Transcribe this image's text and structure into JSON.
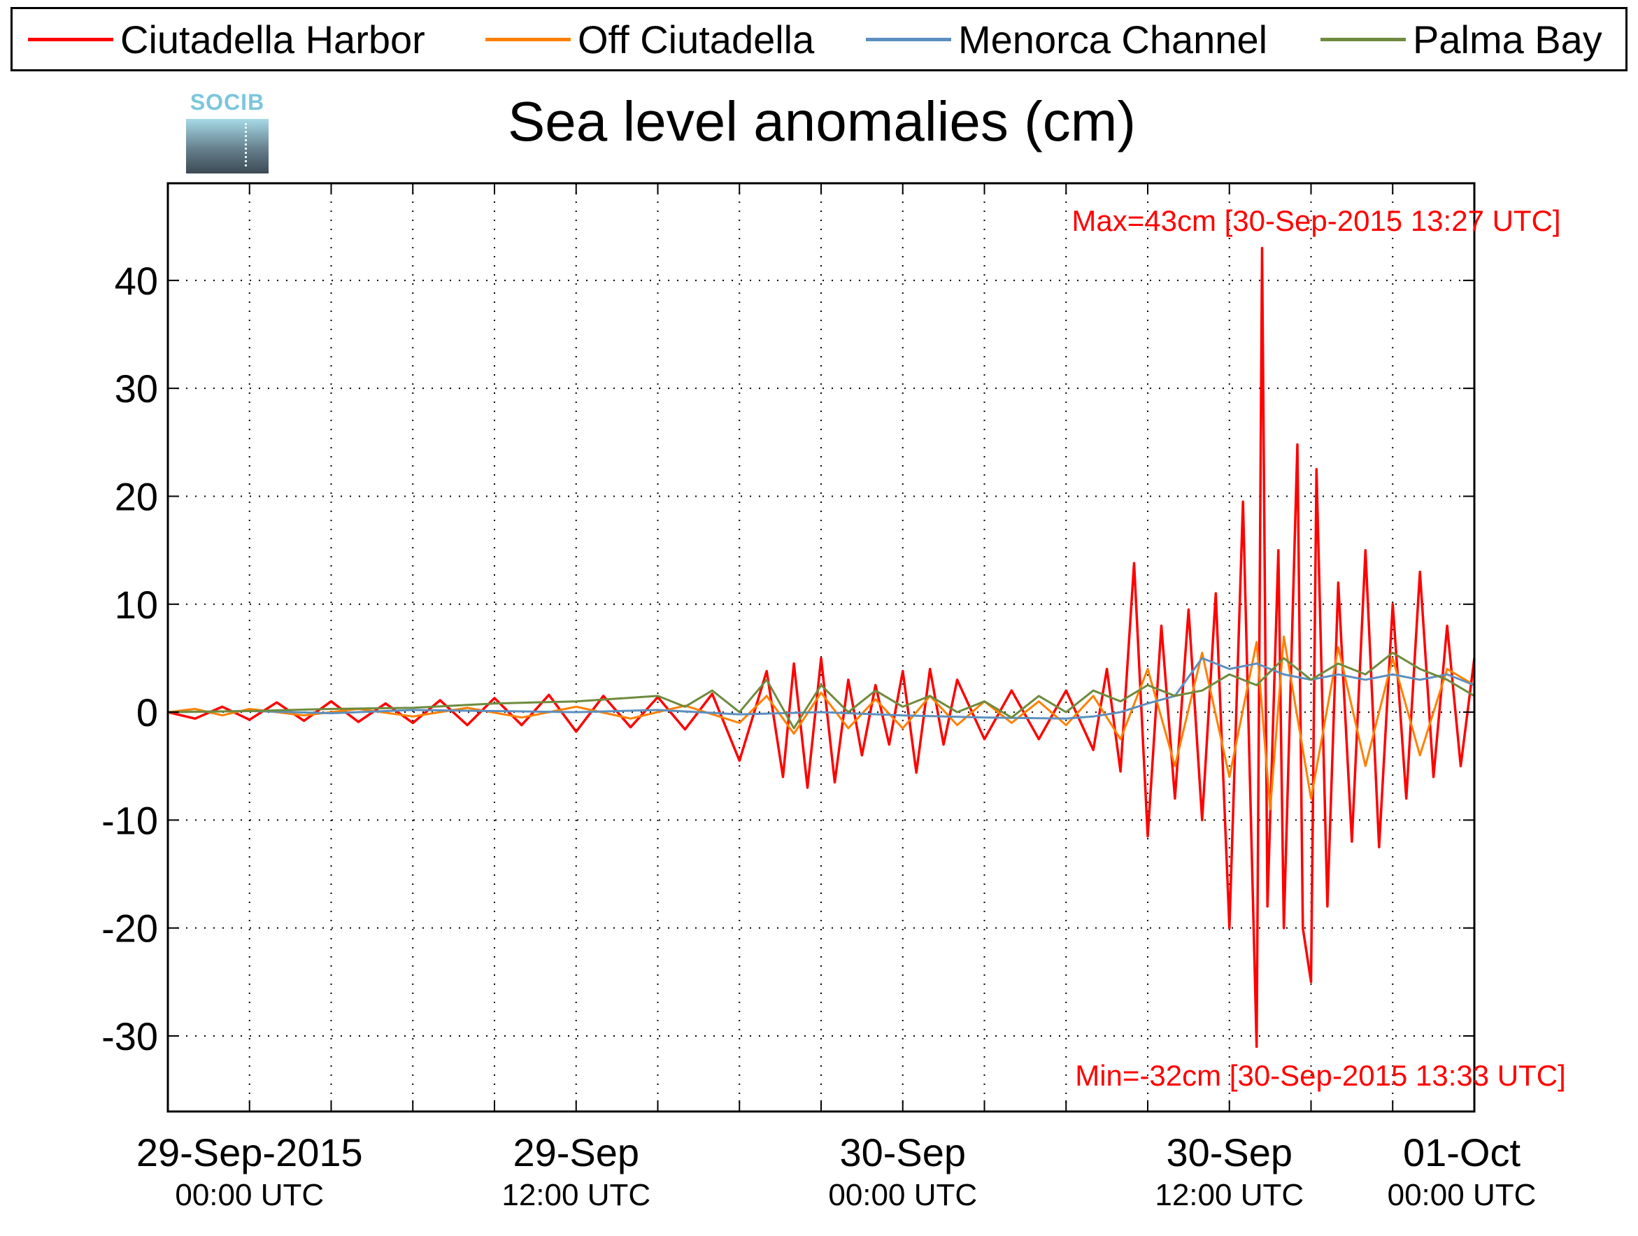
{
  "legend": {
    "items": [
      {
        "label": "Ciutadella Harbor",
        "color": "#ff0000"
      },
      {
        "label": "Off Ciutadella",
        "color": "#ff8000"
      },
      {
        "label": "Menorca Channel",
        "color": "#5b8fbf"
      },
      {
        "label": "Palma Bay",
        "color": "#6e8b3d"
      }
    ]
  },
  "logo": {
    "text": "SOCIB"
  },
  "chart_data": {
    "type": "line",
    "title": "Sea level anomalies (cm)",
    "xlabel": "",
    "ylabel": "",
    "xlim_hours": [
      -3,
      45
    ],
    "ylim": [
      -37,
      49
    ],
    "grid": true,
    "legend_position": "top",
    "y_ticks": [
      40,
      30,
      20,
      10,
      0,
      -10,
      -20,
      -30
    ],
    "x_ticks": [
      {
        "hour": 0,
        "label1": "29-Sep-2015",
        "label2": "00:00 UTC"
      },
      {
        "hour": 12,
        "label1": "29-Sep",
        "label2": "12:00 UTC"
      },
      {
        "hour": 24,
        "label1": "30-Sep",
        "label2": "00:00 UTC"
      },
      {
        "hour": 36,
        "label1": "30-Sep",
        "label2": "12:00 UTC"
      },
      {
        "hour": 48,
        "label1": "01-Oct",
        "label2": "00:00 UTC"
      }
    ],
    "annotations": {
      "max": "Max=43cm [30-Sep-2015 13:27 UTC]",
      "min": "Min=-32cm [30-Sep-2015 13:33 UTC]"
    },
    "series": [
      {
        "name": "Ciutadella Harbor",
        "color": "#ff0000",
        "points": [
          [
            -3,
            0
          ],
          [
            -2,
            -0.6
          ],
          [
            -1,
            0.5
          ],
          [
            0,
            -0.7
          ],
          [
            1,
            0.9
          ],
          [
            2,
            -0.8
          ],
          [
            3,
            1.0
          ],
          [
            4,
            -0.9
          ],
          [
            5,
            0.8
          ],
          [
            6,
            -1.0
          ],
          [
            7,
            1.1
          ],
          [
            8,
            -1.2
          ],
          [
            9,
            1.3
          ],
          [
            10,
            -1.2
          ],
          [
            11,
            1.6
          ],
          [
            12,
            -1.8
          ],
          [
            13,
            1.5
          ],
          [
            14,
            -1.4
          ],
          [
            15,
            1.4
          ],
          [
            16,
            -1.6
          ],
          [
            17,
            1.7
          ],
          [
            18,
            -4.5
          ],
          [
            19,
            3.8
          ],
          [
            19.6,
            -6.0
          ],
          [
            20,
            4.5
          ],
          [
            20.5,
            -7.0
          ],
          [
            21,
            5.0
          ],
          [
            21.5,
            -6.5
          ],
          [
            22,
            3.0
          ],
          [
            22.5,
            -4.0
          ],
          [
            23,
            2.5
          ],
          [
            23.5,
            -3.0
          ],
          [
            24,
            3.8
          ],
          [
            24.5,
            -5.6
          ],
          [
            25,
            4.0
          ],
          [
            25.5,
            -3.0
          ],
          [
            26,
            3.0
          ],
          [
            27,
            -2.5
          ],
          [
            28,
            2.0
          ],
          [
            29,
            -2.5
          ],
          [
            30,
            2.0
          ],
          [
            31,
            -3.5
          ],
          [
            31.5,
            4.0
          ],
          [
            32,
            -5.5
          ],
          [
            32.5,
            13.8
          ],
          [
            33,
            -11.5
          ],
          [
            33.5,
            8.0
          ],
          [
            34,
            -8.0
          ],
          [
            34.5,
            9.5
          ],
          [
            35,
            -10.0
          ],
          [
            35.5,
            11.0
          ],
          [
            36,
            -20.0
          ],
          [
            36.5,
            19.5
          ],
          [
            37,
            -31.0
          ],
          [
            37.2,
            43.0
          ],
          [
            37.4,
            -18.0
          ],
          [
            37.8,
            15.0
          ],
          [
            38,
            -20.0
          ],
          [
            38.5,
            24.8
          ],
          [
            38.7,
            -20.0
          ],
          [
            39,
            -25.0
          ],
          [
            39.2,
            22.5
          ],
          [
            39.6,
            -18.0
          ],
          [
            40,
            12.0
          ],
          [
            40.5,
            -12.0
          ],
          [
            41,
            15.0
          ],
          [
            41.5,
            -12.5
          ],
          [
            42,
            10.0
          ],
          [
            42.5,
            -8.0
          ],
          [
            43,
            13.0
          ],
          [
            43.5,
            -6.0
          ],
          [
            44,
            8.0
          ],
          [
            44.5,
            -5.0
          ],
          [
            45,
            5.0
          ]
        ]
      },
      {
        "name": "Off Ciutadella",
        "color": "#ff8000",
        "points": [
          [
            -3,
            0
          ],
          [
            -2,
            0.3
          ],
          [
            -1,
            -0.3
          ],
          [
            0,
            0.3
          ],
          [
            2,
            -0.3
          ],
          [
            4,
            0.3
          ],
          [
            6,
            -0.4
          ],
          [
            8,
            0.4
          ],
          [
            10,
            -0.5
          ],
          [
            12,
            0.5
          ],
          [
            14,
            -0.6
          ],
          [
            16,
            0.6
          ],
          [
            18,
            -1.0
          ],
          [
            19,
            1.5
          ],
          [
            20,
            -2.0
          ],
          [
            21,
            1.8
          ],
          [
            22,
            -1.5
          ],
          [
            23,
            1.2
          ],
          [
            24,
            -1.5
          ],
          [
            25,
            1.5
          ],
          [
            26,
            -1.2
          ],
          [
            27,
            1.0
          ],
          [
            28,
            -1.0
          ],
          [
            29,
            1.0
          ],
          [
            30,
            -1.2
          ],
          [
            31,
            1.5
          ],
          [
            32,
            -2.5
          ],
          [
            33,
            4.0
          ],
          [
            34,
            -5.0
          ],
          [
            35,
            5.5
          ],
          [
            36,
            -6.0
          ],
          [
            37,
            6.5
          ],
          [
            37.5,
            -9.0
          ],
          [
            38,
            7.0
          ],
          [
            39,
            -8.0
          ],
          [
            40,
            6.0
          ],
          [
            41,
            -5.0
          ],
          [
            42,
            5.0
          ],
          [
            43,
            -4.0
          ],
          [
            44,
            4.0
          ],
          [
            45,
            2.5
          ]
        ]
      },
      {
        "name": "Menorca Channel",
        "color": "#5b8fbf",
        "points": [
          [
            -3,
            0
          ],
          [
            0,
            0.1
          ],
          [
            3,
            -0.1
          ],
          [
            6,
            0.2
          ],
          [
            9,
            0.1
          ],
          [
            12,
            0
          ],
          [
            15,
            0.2
          ],
          [
            18,
            -0.2
          ],
          [
            21,
            0
          ],
          [
            24,
            -0.3
          ],
          [
            27,
            -0.5
          ],
          [
            30,
            -0.6
          ],
          [
            31,
            -0.4
          ],
          [
            32,
            0
          ],
          [
            33,
            0.8
          ],
          [
            34,
            1.5
          ],
          [
            35,
            5.0
          ],
          [
            36,
            4.0
          ],
          [
            37,
            4.5
          ],
          [
            38,
            3.5
          ],
          [
            39,
            3.0
          ],
          [
            40,
            3.5
          ],
          [
            41,
            3.0
          ],
          [
            42,
            3.5
          ],
          [
            43,
            3.0
          ],
          [
            44,
            3.5
          ],
          [
            45,
            2.5
          ]
        ]
      },
      {
        "name": "Palma Bay",
        "color": "#6e8b3d",
        "points": [
          [
            -3,
            0
          ],
          [
            0,
            0.1
          ],
          [
            3,
            0.3
          ],
          [
            6,
            0.4
          ],
          [
            9,
            0.8
          ],
          [
            12,
            1.0
          ],
          [
            15,
            1.5
          ],
          [
            16,
            0.5
          ],
          [
            17,
            2.0
          ],
          [
            18,
            0
          ],
          [
            19,
            3.0
          ],
          [
            20,
            -1.5
          ],
          [
            21,
            2.5
          ],
          [
            22,
            0
          ],
          [
            23,
            2.0
          ],
          [
            24,
            0.5
          ],
          [
            25,
            1.5
          ],
          [
            26,
            0
          ],
          [
            27,
            1.0
          ],
          [
            28,
            -0.5
          ],
          [
            29,
            1.5
          ],
          [
            30,
            0
          ],
          [
            31,
            2.0
          ],
          [
            32,
            1.0
          ],
          [
            33,
            2.5
          ],
          [
            34,
            1.5
          ],
          [
            35,
            2.0
          ],
          [
            36,
            3.5
          ],
          [
            37,
            2.5
          ],
          [
            38,
            5.0
          ],
          [
            39,
            3.0
          ],
          [
            40,
            4.5
          ],
          [
            41,
            3.5
          ],
          [
            42,
            5.5
          ],
          [
            43,
            4.0
          ],
          [
            44,
            3.0
          ],
          [
            45,
            1.5
          ]
        ]
      }
    ]
  }
}
